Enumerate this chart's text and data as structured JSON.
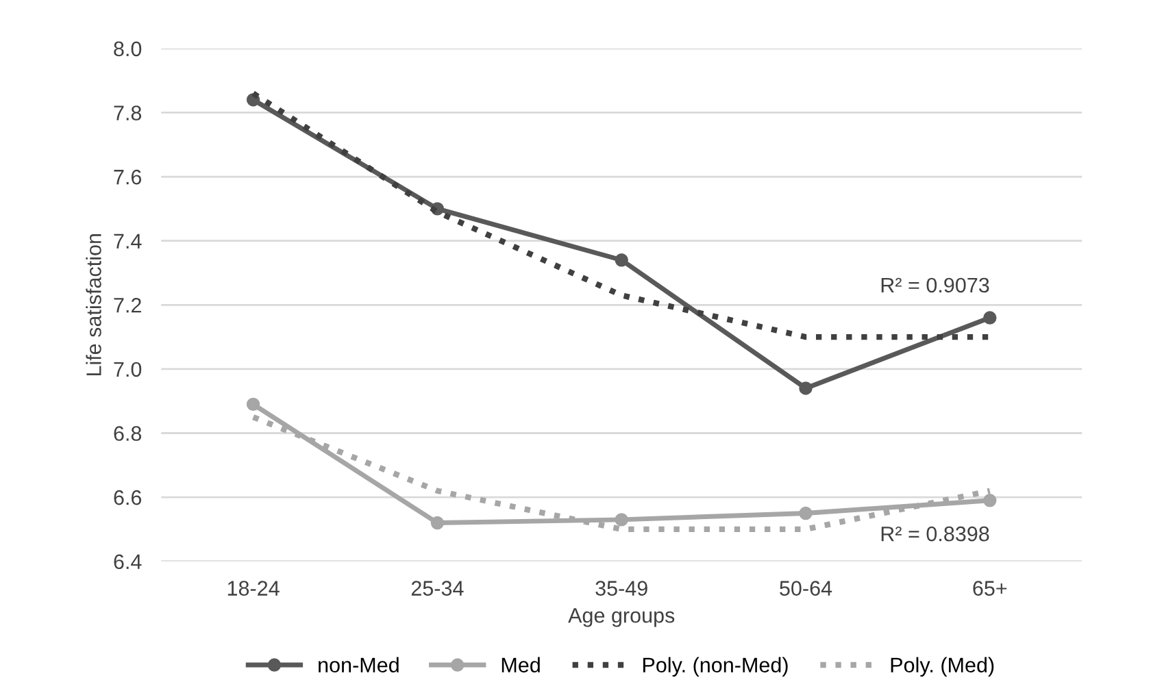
{
  "chart_data": {
    "type": "line",
    "xlabel": "Age groups",
    "ylabel": "Life satisfaction",
    "categories": [
      "18-24",
      "25-34",
      "35-49",
      "50-64",
      "65+"
    ],
    "series": [
      {
        "name": "non-Med",
        "color": "#595959",
        "values": [
          7.84,
          7.5,
          7.34,
          6.94,
          7.16
        ],
        "marker": "circle",
        "line_style": "solid"
      },
      {
        "name": "Med",
        "color": "#a6a6a6",
        "values": [
          6.89,
          6.52,
          6.53,
          6.55,
          6.59
        ],
        "marker": "circle",
        "line_style": "solid"
      },
      {
        "name": "Poly. (non-Med)",
        "color": "#404040",
        "values": [
          7.86,
          7.49,
          7.23,
          7.1,
          7.1
        ],
        "marker": "none",
        "line_style": "dotted"
      },
      {
        "name": "Poly. (Med)",
        "color": "#a6a6a6",
        "values": [
          6.85,
          6.62,
          6.5,
          6.5,
          6.62
        ],
        "marker": "none",
        "line_style": "dotted"
      }
    ],
    "ylim": [
      6.4,
      8.0
    ],
    "yticks": [
      {
        "value": 6.4,
        "label": "6.4"
      },
      {
        "value": 6.6,
        "label": "6.6"
      },
      {
        "value": 6.8,
        "label": "6.8"
      },
      {
        "value": 7.0,
        "label": "7.0"
      },
      {
        "value": 7.2,
        "label": "7.2"
      },
      {
        "value": 7.4,
        "label": "7.4"
      },
      {
        "value": 7.6,
        "label": "7.6"
      },
      {
        "value": 7.8,
        "label": "7.8"
      },
      {
        "value": 8.0,
        "label": "8.0"
      }
    ],
    "grid": "y",
    "legend": "bottom",
    "annotations": [
      "R² = 0.9073",
      "R² = 0.8398"
    ]
  }
}
